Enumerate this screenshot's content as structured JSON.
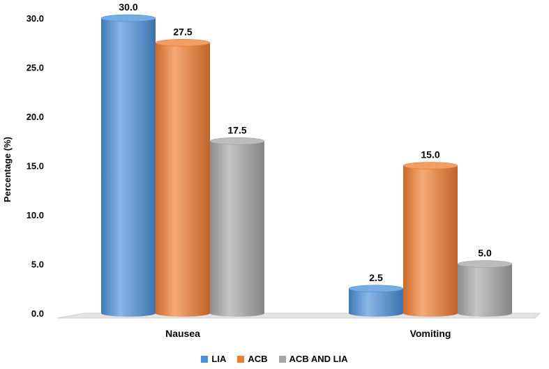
{
  "chart_data": {
    "type": "bar",
    "categories": [
      "Nausea",
      "Vomiting"
    ],
    "series": [
      {
        "name": "LIA",
        "values": [
          30.0,
          2.5
        ],
        "color": "#4A90D9"
      },
      {
        "name": "ACB",
        "values": [
          27.5,
          15.0
        ],
        "color": "#F07C2E"
      },
      {
        "name": "ACB AND LIA",
        "values": [
          17.5,
          5.0
        ],
        "color": "#A6A6A6"
      }
    ],
    "data_labels": [
      [
        "30.0",
        "2.5"
      ],
      [
        "27.5",
        "15.0"
      ],
      [
        "17.5",
        "5.0"
      ]
    ],
    "yticks": [
      "0.0",
      "5.0",
      "10.0",
      "15.0",
      "20.0",
      "25.0",
      "30.0"
    ],
    "ylim": [
      0,
      30
    ],
    "ylabel": "Percentage (%)",
    "xlabel": "",
    "title": "",
    "grid": false,
    "legend_position": "bottom",
    "bar_style": "3d-cylinder"
  }
}
